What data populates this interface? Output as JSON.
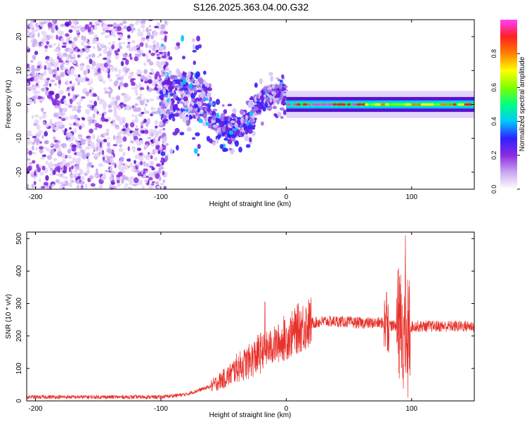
{
  "title": "S126.2025.363.04.00.G32",
  "chart_data": [
    {
      "type": "heatmap",
      "title": "S126.2025.363.04.00.G32",
      "xlabel": "Height of straight line (km)",
      "ylabel": "Frequency (Hz)",
      "xlim": [
        -207,
        150
      ],
      "ylim": [
        -25,
        25
      ],
      "xticks": [
        -200,
        -100,
        0,
        100
      ],
      "xtick_labels": [
        "-200",
        "-100",
        "0",
        "100"
      ],
      "yticks": [
        -20,
        -10,
        0,
        10,
        20
      ],
      "ytick_labels": [
        "-20",
        "-10",
        "0",
        "10",
        "20"
      ],
      "colorbar": {
        "label": "Normalized spectral amplitude",
        "range": [
          0,
          1
        ],
        "ticks": [
          0.0,
          0.2,
          0.4,
          0.6,
          0.8
        ],
        "tick_labels": [
          "0.0",
          "0.2",
          "0.4",
          "0.6",
          "0.8"
        ],
        "colors": [
          "#ffffff",
          "#c8a8f0",
          "#8a2be2",
          "#3020ff",
          "#00c8ff",
          "#00ff80",
          "#80ff00",
          "#ffff00",
          "#ff8000",
          "#ff2020",
          "#ff40ff"
        ]
      },
      "features": {
        "noise_region_km": [
          -207,
          -100
        ],
        "transition_region_km": [
          -100,
          0
        ],
        "steady_line_region_km": [
          0,
          150
        ],
        "steady_line_frequency_hz": 0
      }
    },
    {
      "type": "line",
      "xlabel": "Height of straight line (km)",
      "ylabel": "SNR (10 * v/v)",
      "xlim": [
        -207,
        150
      ],
      "ylim": [
        0,
        520
      ],
      "xticks": [
        -200,
        -100,
        0,
        100
      ],
      "xtick_labels": [
        "-200",
        "-100",
        "0",
        "100"
      ],
      "yticks": [
        0,
        100,
        200,
        300,
        400,
        500
      ],
      "ytick_labels": [
        "0",
        "100",
        "200",
        "300",
        "400",
        "500"
      ],
      "color": "#e8302a",
      "envelope_x": [
        -207,
        -150,
        -100,
        -80,
        -60,
        -45,
        -40,
        -30,
        -20,
        -10,
        0,
        10,
        20,
        30,
        40,
        60,
        80,
        85,
        90,
        95,
        100,
        120,
        150
      ],
      "envelope_y": [
        12,
        12,
        12,
        20,
        45,
        80,
        100,
        120,
        150,
        170,
        190,
        225,
        240,
        245,
        245,
        240,
        240,
        230,
        235,
        200,
        230,
        230,
        230
      ],
      "spikes": [
        {
          "x": -17,
          "y": 305
        },
        {
          "x": -2,
          "y": 262
        },
        {
          "x": 80,
          "y": 335
        },
        {
          "x": 90,
          "y": 300
        },
        {
          "x": 95,
          "y": 510
        },
        {
          "x": 97,
          "y": 10
        }
      ]
    }
  ]
}
